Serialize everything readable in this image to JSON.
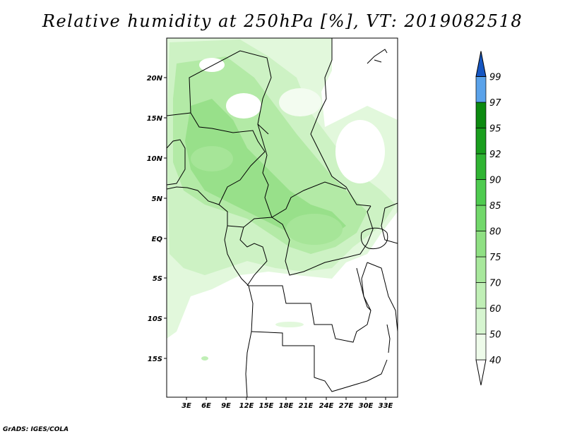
{
  "title": "Relative humidity at 250hPa [%], VT: 2019082518",
  "credit": "GrADS: IGES/COLA",
  "lat_labels": [
    "20N",
    "15N",
    "10N",
    "5N",
    "EQ",
    "5S",
    "10S",
    "15S"
  ],
  "lon_labels": [
    "3E",
    "6E",
    "9E",
    "12E",
    "15E",
    "18E",
    "21E",
    "24E",
    "27E",
    "30E",
    "33E"
  ],
  "colorbar": {
    "labels": [
      "40",
      "50",
      "60",
      "70",
      "75",
      "80",
      "85",
      "90",
      "92",
      "95",
      "97",
      "99"
    ],
    "colors": [
      "#eefbea",
      "#d6f5d0",
      "#c0efb6",
      "#a8e89c",
      "#8fe083",
      "#72d86b",
      "#4fcb50",
      "#30b433",
      "#1a9e1e",
      "#0c8a10",
      "#5aa2ea",
      "#2f78dc",
      "#1656c2"
    ]
  },
  "colors": {
    "frame": "#000000",
    "land_border": "#000000"
  }
}
